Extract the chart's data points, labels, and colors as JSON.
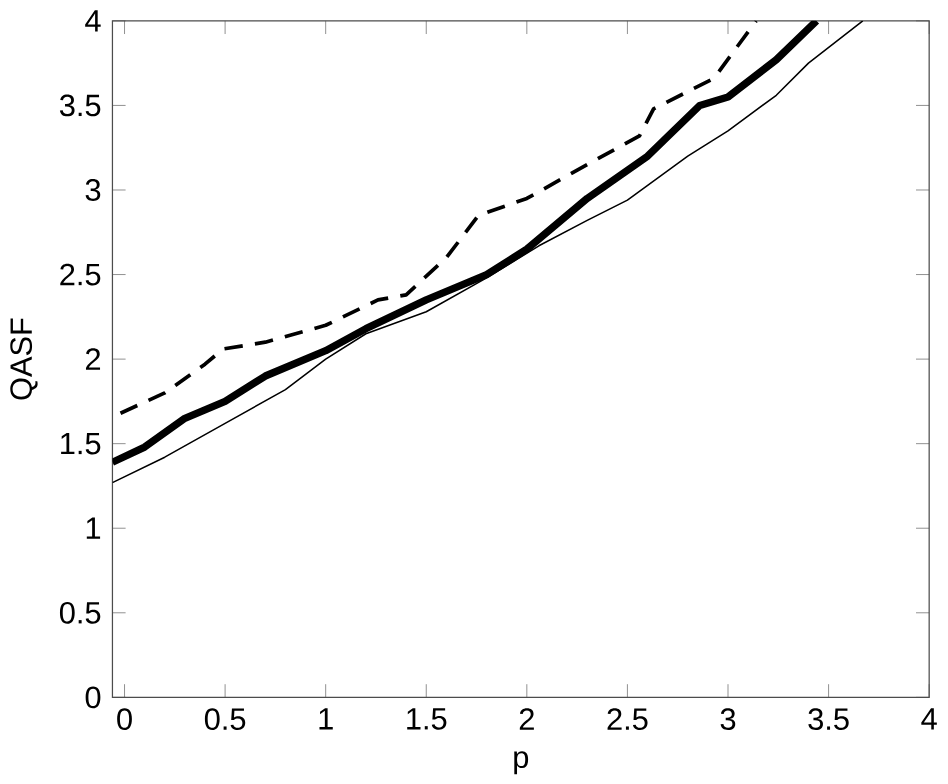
{
  "chart_data": {
    "type": "line",
    "xlabel": "p",
    "ylabel": "QASF",
    "xlim": [
      -0.06,
      4
    ],
    "ylim": [
      0,
      4
    ],
    "xticks": [
      0,
      0.5,
      1,
      1.5,
      2,
      2.5,
      3,
      3.5,
      4
    ],
    "yticks": [
      0,
      0.5,
      1,
      1.5,
      2,
      2.5,
      3,
      3.5,
      4
    ],
    "grid": false,
    "marker": "none",
    "series": [
      {
        "color": "#000000",
        "line_style": "solid",
        "x": [
          -0.06,
          0.1,
          0.3,
          0.5,
          0.7,
          1.0,
          1.2,
          1.5,
          1.8,
          2.0,
          2.3,
          2.6,
          2.86,
          3.0,
          3.24,
          3.44
        ],
        "values": [
          1.39,
          1.48,
          1.65,
          1.75,
          1.9,
          2.05,
          2.18,
          2.35,
          2.5,
          2.65,
          2.95,
          3.2,
          3.5,
          3.55,
          3.77,
          4
        ]
      },
      {
        "color": "#000000",
        "line_style": "dashed",
        "x": [
          -0.02,
          0.2,
          0.4,
          0.49,
          0.7,
          1.0,
          1.26,
          1.4,
          1.6,
          1.76,
          2.0,
          2.3,
          2.56,
          2.63,
          2.93,
          3.14
        ],
        "values": [
          1.68,
          1.8,
          1.97,
          2.06,
          2.1,
          2.2,
          2.35,
          2.38,
          2.6,
          2.85,
          2.95,
          3.15,
          3.32,
          3.48,
          3.66,
          4
        ]
      },
      {
        "color": "#000000",
        "line_style": "solid",
        "x": [
          -0.06,
          0.2,
          0.5,
          0.8,
          1.0,
          1.2,
          1.5,
          1.8,
          2.06,
          2.3,
          2.5,
          2.8,
          3.0,
          3.24,
          3.4,
          3.67
        ],
        "values": [
          1.27,
          1.42,
          1.62,
          1.82,
          2.0,
          2.15,
          2.28,
          2.48,
          2.67,
          2.82,
          2.94,
          3.2,
          3.35,
          3.56,
          3.75,
          4
        ]
      }
    ]
  }
}
